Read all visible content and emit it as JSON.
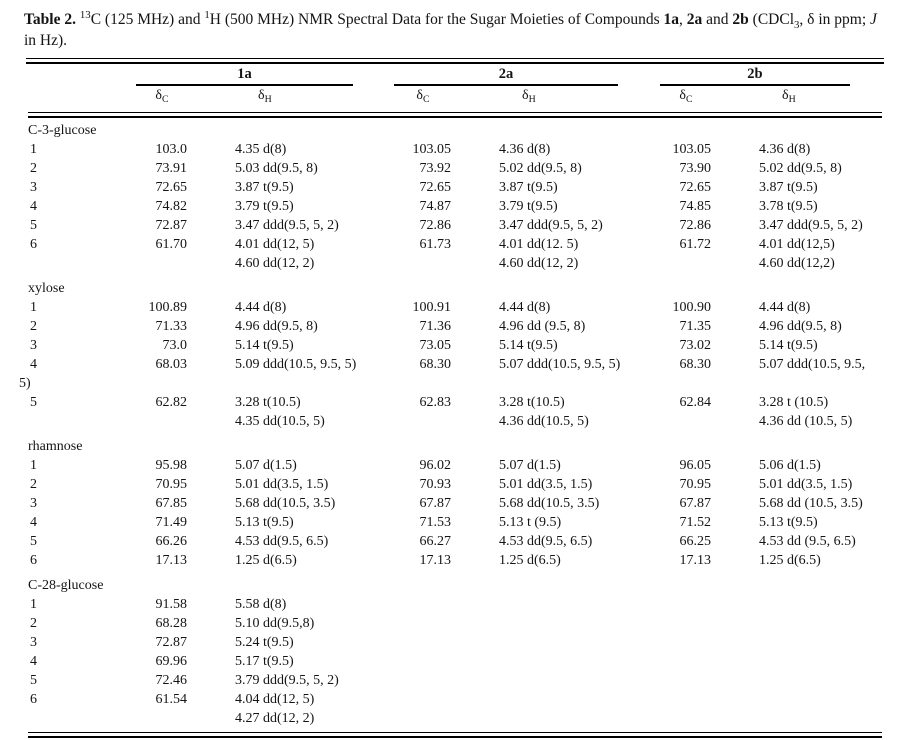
{
  "page": {
    "background": "#ffffff",
    "text_color": "#141414"
  },
  "title": {
    "segments": [
      {
        "text": "Table 2.",
        "bold": true
      },
      {
        "text": " "
      },
      {
        "text": "13",
        "sup": true
      },
      {
        "text": "C (125 MHz) and "
      },
      {
        "text": "1",
        "sup": true
      },
      {
        "text": "H (500 MHz) NMR Spectral Data for the Sugar Moieties of Compounds "
      },
      {
        "text": "1a",
        "bold": true
      },
      {
        "text": ", "
      },
      {
        "text": "2a",
        "bold": true
      },
      {
        "text": " and "
      },
      {
        "text": "2b",
        "bold": true
      },
      {
        "text": " (CDCl"
      },
      {
        "text": "3",
        "sub": true
      },
      {
        "text": ", δ in ppm; "
      },
      {
        "text": "J",
        "italic": true
      },
      {
        "text": " in Hz)."
      }
    ]
  },
  "table": {
    "groups": [
      {
        "label": "1a"
      },
      {
        "label": "2a"
      },
      {
        "label": "2b"
      }
    ],
    "subheader": {
      "delta": "δ",
      "carbon_sub": "C",
      "proton_sub": "H"
    },
    "sections": [
      {
        "name": "C-3-glucose",
        "rows": [
          {
            "label": "1",
            "a_c": "103.0",
            "a_h": [
              "4.35 d(8)"
            ],
            "b_c": "103.05",
            "b_h": [
              "4.36 d(8)"
            ],
            "c_c": "103.05",
            "c_h": [
              "4.36 d(8)"
            ]
          },
          {
            "label": "2",
            "a_c": "73.91",
            "a_h": [
              "5.03 dd(9.5, 8)"
            ],
            "b_c": "73.92",
            "b_h": [
              "5.02 dd(9.5, 8)"
            ],
            "c_c": "73.90",
            "c_h": [
              "5.02 dd(9.5, 8)"
            ]
          },
          {
            "label": "3",
            "a_c": "72.65",
            "a_h": [
              "3.87 t(9.5)"
            ],
            "b_c": "72.65",
            "b_h": [
              "3.87 t(9.5)"
            ],
            "c_c": "72.65",
            "c_h": [
              "3.87 t(9.5)"
            ]
          },
          {
            "label": "4",
            "a_c": "74.82",
            "a_h": [
              "3.79 t(9.5)"
            ],
            "b_c": "74.87",
            "b_h": [
              "3.79 t(9.5)"
            ],
            "c_c": "74.85",
            "c_h": [
              "3.78 t(9.5)"
            ]
          },
          {
            "label": "5",
            "a_c": "72.87",
            "a_h": [
              "3.47 ddd(9.5, 5, 2)"
            ],
            "b_c": "72.86",
            "b_h": [
              "3.47 ddd(9.5, 5, 2)"
            ],
            "c_c": "72.86",
            "c_h": [
              "3.47 ddd(9.5, 5, 2)"
            ]
          },
          {
            "label": "6",
            "a_c": "61.70",
            "a_h": [
              "4.01 dd(12, 5)",
              "4.60 dd(12, 2)"
            ],
            "b_c": "61.73",
            "b_h": [
              "4.01 dd(12. 5)",
              "4.60 dd(12, 2)"
            ],
            "c_c": "61.72",
            "c_h": [
              "4.01 dd(12,5)",
              "4.60 dd(12,2)"
            ]
          }
        ]
      },
      {
        "name": "xylose",
        "rows": [
          {
            "label": "1",
            "a_c": "100.89",
            "a_h": [
              "4.44 d(8)"
            ],
            "b_c": "100.91",
            "b_h": [
              "4.44 d(8)"
            ],
            "c_c": "100.90",
            "c_h": [
              "4.44 d(8)"
            ]
          },
          {
            "label": "2",
            "a_c": "71.33",
            "a_h": [
              "4.96 dd(9.5, 8)"
            ],
            "b_c": "71.36",
            "b_h": [
              "4.96 dd (9.5, 8)"
            ],
            "c_c": "71.35",
            "c_h": [
              "4.96 dd(9.5, 8)"
            ]
          },
          {
            "label": "3",
            "a_c": "73.0",
            "a_h": [
              "5.14 t(9.5)"
            ],
            "b_c": "73.05",
            "b_h": [
              "5.14 t(9.5)"
            ],
            "c_c": "73.02",
            "c_h": [
              "5.14 t(9.5)"
            ]
          },
          {
            "label": "4",
            "a_c": "68.03",
            "a_h": [
              "5.09 ddd(10.5, 9.5, 5)"
            ],
            "b_c": "68.30",
            "b_h": [
              "5.07 ddd(10.5, 9.5, 5)"
            ],
            "c_c": "68.30",
            "c_h": [
              "5.07 ddd(10.5, 9.5,"
            ]
          },
          {
            "label": "5)",
            "continuation": true,
            "a_c": "",
            "a_h": [],
            "b_c": "",
            "b_h": [],
            "c_c": "",
            "c_h": []
          },
          {
            "label": "5",
            "a_c": "62.82",
            "a_h": [
              "3.28 t(10.5)",
              "4.35 dd(10.5, 5)"
            ],
            "b_c": "62.83",
            "b_h": [
              "3.28 t(10.5)",
              "4.36 dd(10.5, 5)"
            ],
            "c_c": "62.84",
            "c_h": [
              "3.28 t (10.5)",
              "4.36 dd (10.5, 5)"
            ]
          }
        ]
      },
      {
        "name": "rhamnose",
        "rows": [
          {
            "label": "1",
            "a_c": "95.98",
            "a_h": [
              "5.07 d(1.5)"
            ],
            "b_c": "96.02",
            "b_h": [
              "5.07 d(1.5)"
            ],
            "c_c": "96.05",
            "c_h": [
              "5.06 d(1.5)"
            ]
          },
          {
            "label": "2",
            "a_c": "70.95",
            "a_h": [
              "5.01 dd(3.5, 1.5)"
            ],
            "b_c": "70.93",
            "b_h": [
              "5.01 dd(3.5, 1.5)"
            ],
            "c_c": "70.95",
            "c_h": [
              "5.01 dd(3.5, 1.5)"
            ]
          },
          {
            "label": "3",
            "a_c": "67.85",
            "a_h": [
              "5.68 dd(10.5, 3.5)"
            ],
            "b_c": "67.87",
            "b_h": [
              "5.68 dd(10.5, 3.5)"
            ],
            "c_c": "67.87",
            "c_h": [
              "5.68 dd (10.5, 3.5)"
            ]
          },
          {
            "label": "4",
            "a_c": "71.49",
            "a_h": [
              "5.13 t(9.5)"
            ],
            "b_c": "71.53",
            "b_h": [
              "5.13 t (9.5)"
            ],
            "c_c": "71.52",
            "c_h": [
              "5.13 t(9.5)"
            ]
          },
          {
            "label": "5",
            "a_c": "66.26",
            "a_h": [
              "4.53 dd(9.5, 6.5)"
            ],
            "b_c": "66.27",
            "b_h": [
              "4.53 dd(9.5, 6.5)"
            ],
            "c_c": "66.25",
            "c_h": [
              "4.53 dd (9.5, 6.5)"
            ]
          },
          {
            "label": "6",
            "a_c": "17.13",
            "a_h": [
              "1.25 d(6.5)"
            ],
            "b_c": "17.13",
            "b_h": [
              "1.25 d(6.5)"
            ],
            "c_c": "17.13",
            "c_h": [
              "1.25 d(6.5)"
            ]
          }
        ]
      },
      {
        "name": "C-28-glucose",
        "rows": [
          {
            "label": "1",
            "a_c": "91.58",
            "a_h": [
              "5.58 d(8)"
            ],
            "b_c": "",
            "b_h": [],
            "c_c": "",
            "c_h": []
          },
          {
            "label": "2",
            "a_c": "68.28",
            "a_h": [
              "5.10 dd(9.5,8)"
            ],
            "b_c": "",
            "b_h": [],
            "c_c": "",
            "c_h": []
          },
          {
            "label": "3",
            "a_c": "72.87",
            "a_h": [
              "5.24 t(9.5)"
            ],
            "b_c": "",
            "b_h": [],
            "c_c": "",
            "c_h": []
          },
          {
            "label": "4",
            "a_c": "69.96",
            "a_h": [
              "5.17 t(9.5)"
            ],
            "b_c": "",
            "b_h": [],
            "c_c": "",
            "c_h": []
          },
          {
            "label": "5",
            "a_c": "72.46",
            "a_h": [
              "3.79 ddd(9.5, 5, 2)"
            ],
            "b_c": "",
            "b_h": [],
            "c_c": "",
            "c_h": []
          },
          {
            "label": "6",
            "a_c": "61.54",
            "a_h": [
              "4.04 dd(12, 5)",
              "4.27 dd(12, 2)"
            ],
            "b_c": "",
            "b_h": [],
            "c_c": "",
            "c_h": []
          }
        ]
      }
    ]
  }
}
